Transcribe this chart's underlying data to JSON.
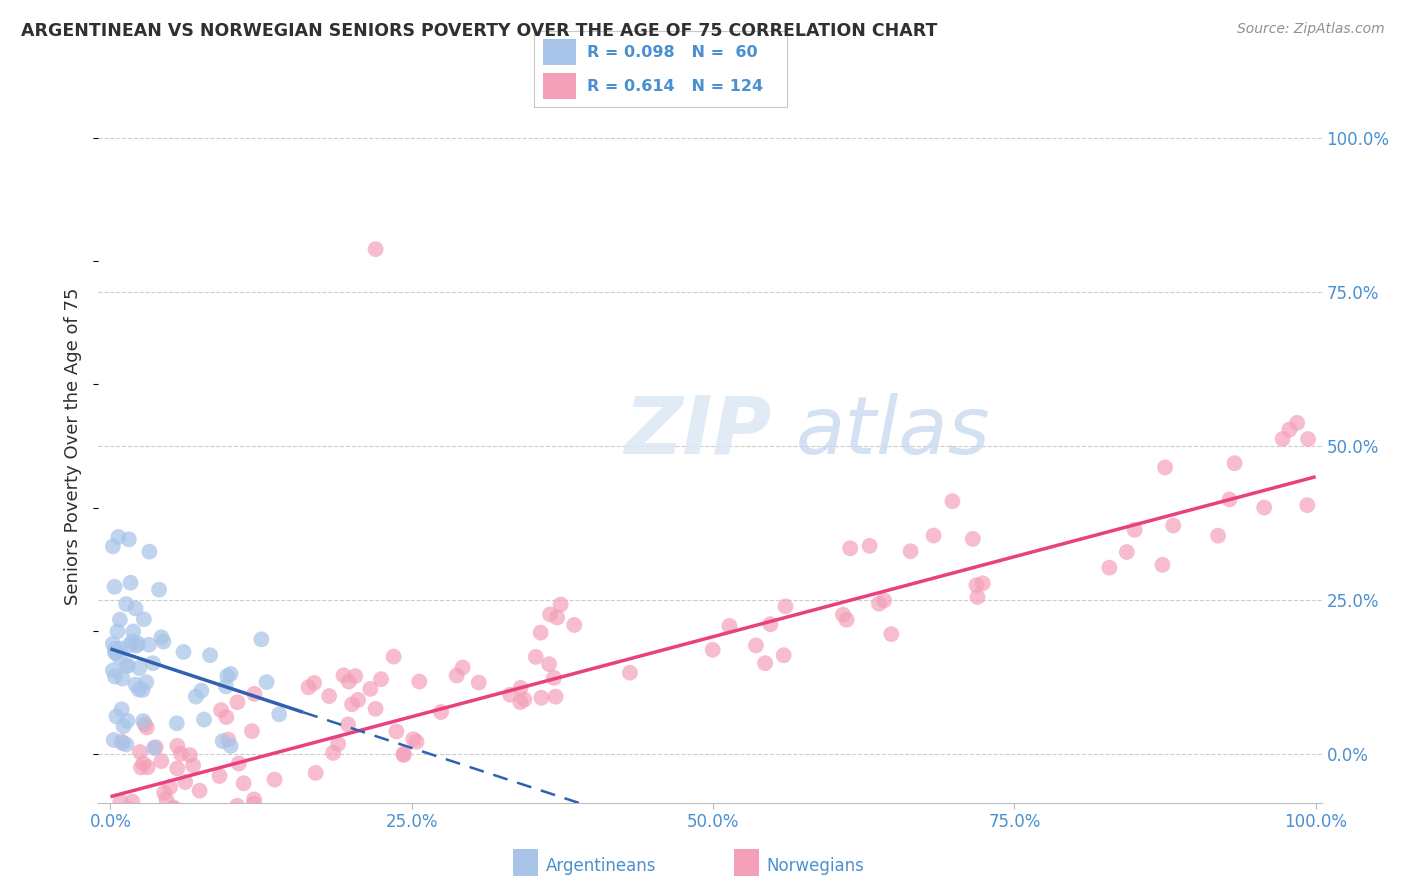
{
  "title": "ARGENTINEAN VS NORWEGIAN SENIORS POVERTY OVER THE AGE OF 75 CORRELATION CHART",
  "source": "Source: ZipAtlas.com",
  "ylabel": "Seniors Poverty Over the Age of 75",
  "watermark_zip": "ZIP",
  "watermark_atlas": "atlas",
  "xlim": [
    0,
    1
  ],
  "ylim": [
    -0.08,
    1.08
  ],
  "background": "#ffffff",
  "arg_color": "#a8c4e8",
  "nor_color": "#f4a0b8",
  "arg_line_color": "#3060b0",
  "nor_line_color": "#e84080",
  "label_color": "#4a90d0",
  "tick_color": "#4a90d0",
  "title_color": "#303030",
  "source_color": "#909090",
  "grid_color": "#cccccc",
  "ytick_vals": [
    0.0,
    0.25,
    0.5,
    0.75,
    1.0
  ],
  "ytick_labels": [
    "0.0%",
    "25.0%",
    "50.0%",
    "75.0%",
    "100.0%"
  ],
  "xtick_vals": [
    0.0,
    0.25,
    0.5,
    0.75,
    1.0
  ],
  "xtick_labels": [
    "0.0%",
    "25.0%",
    "50.0%",
    "75.0%",
    "100.0%"
  ],
  "legend_R_arg": "R = 0.098",
  "legend_N_arg": "N =  60",
  "legend_R_nor": "R = 0.614",
  "legend_N_nor": "N = 124",
  "bottom_legend_arg": "Argentineans",
  "bottom_legend_nor": "Norwegians",
  "arg_N": 60,
  "nor_N": 124,
  "arg_seed": 101,
  "nor_seed": 202
}
